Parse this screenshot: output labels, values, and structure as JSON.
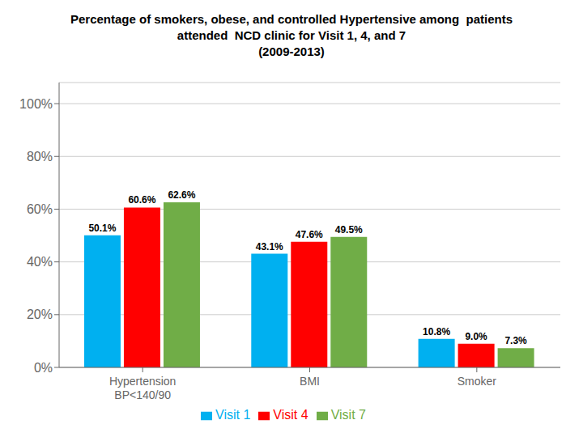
{
  "chart_data": {
    "type": "bar",
    "title": "Percentage of smokers, obese, and controlled Hypertensive among  patients\nattended  NCD clinic for Visit 1, 4, and 7\n(2009-2013)",
    "categories": [
      "Hypertension\nBP<140/90",
      "BMI",
      "Smoker"
    ],
    "series": [
      {
        "name": "Visit 1",
        "color": "#00B0F0",
        "values": [
          50.1,
          43.1,
          10.8
        ],
        "value_labels": [
          "50.1%",
          "43.1%",
          "10.8%"
        ]
      },
      {
        "name": "Visit 4",
        "color": "#FF0000",
        "values": [
          60.6,
          47.6,
          9.0
        ],
        "value_labels": [
          "60.6%",
          "47.6%",
          "9.0%"
        ]
      },
      {
        "name": "Visit 7",
        "color": "#70AD47",
        "values": [
          62.6,
          49.5,
          7.3
        ],
        "value_labels": [
          "62.6%",
          "49.5%",
          "7.3%"
        ]
      }
    ],
    "ylim": [
      0,
      108
    ],
    "yticks": [
      {
        "value": 0,
        "label": "0%"
      },
      {
        "value": 20,
        "label": "20%"
      },
      {
        "value": 40,
        "label": "40%"
      },
      {
        "value": 60,
        "label": "60%"
      },
      {
        "value": 80,
        "label": "80%"
      },
      {
        "value": 100,
        "label": "100%"
      }
    ],
    "grid": true,
    "legend": "bottom",
    "data_labels": true
  }
}
